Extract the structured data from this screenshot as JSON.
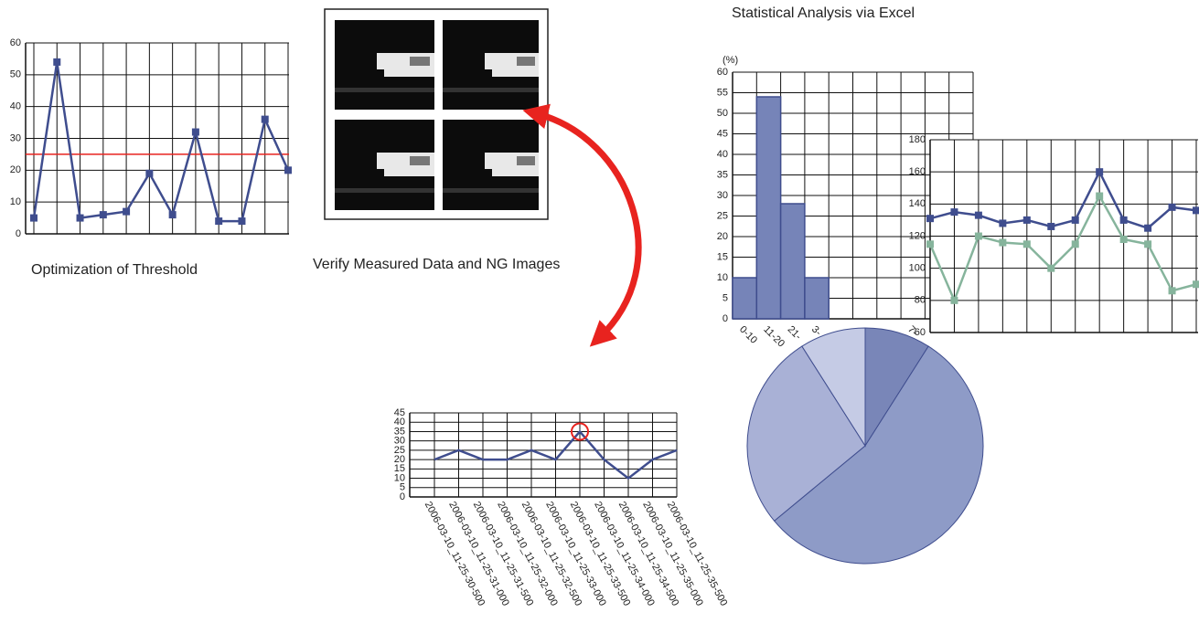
{
  "chart_data": [
    {
      "type": "line",
      "title": "Optimization of Threshold",
      "categories": [
        null,
        null,
        null,
        null,
        null,
        null,
        null,
        null,
        null,
        null,
        null,
        null
      ],
      "values": [
        5,
        54,
        5,
        6,
        7,
        19,
        6,
        32,
        4,
        4,
        36,
        20
      ],
      "color": "#3f4d8e",
      "markers": true,
      "threshold": 25,
      "threshold_color": "#e8231f",
      "ylim": [
        0,
        60
      ],
      "yticks": [
        0,
        10,
        20,
        30,
        40,
        50,
        60
      ],
      "grid": true
    },
    {
      "type": "line",
      "title": "Verify Measured Data and NG Images",
      "categories": [
        "2006-03-10_11-25-30-500",
        "2006-03-10_11-25-31-000",
        "2006-03-10_11-25-31-500",
        "2006-03-10_11-25-32-000",
        "2006-03-10_11-25-32-500",
        "2006-03-10_11-25-33-000",
        "2006-03-10_11-25-33-500",
        "2006-03-10_11-25-34-000",
        "2006-03-10_11-25-34-500",
        "2006-03-10_11-25-35-000",
        "2006-03-10_11-25-35-500"
      ],
      "values": [
        20,
        25,
        20,
        20,
        25,
        20,
        35,
        20,
        10,
        20,
        25
      ],
      "color": "#3f4d8e",
      "markers": false,
      "highlight": 6,
      "highlight_color": "#e8231f",
      "ylim": [
        0,
        45
      ],
      "yticks": [
        0,
        5,
        10,
        15,
        20,
        25,
        30,
        35,
        40,
        45
      ],
      "grid": true
    },
    {
      "type": "bar",
      "title": "Statistical Analysis via Excel",
      "y_label": "(%)",
      "categories": [
        "0-10",
        "11-20",
        "21-",
        "3-",
        null,
        null,
        null,
        "7-",
        null,
        null
      ],
      "values": [
        10,
        54,
        28,
        10,
        null,
        null,
        null,
        null,
        null,
        null
      ],
      "color": "#7684b8",
      "ylim": [
        0,
        60
      ],
      "yticks": [
        0,
        5,
        10,
        15,
        20,
        25,
        30,
        35,
        40,
        45,
        50,
        55,
        60
      ],
      "grid": true
    },
    {
      "type": "line",
      "categories": [
        null,
        null,
        null,
        null,
        null,
        null,
        null,
        null,
        null,
        null,
        null,
        null
      ],
      "series": [
        {
          "color": "#3f4d8e",
          "values": [
            131,
            135,
            133,
            128,
            130,
            126,
            130,
            160,
            130,
            125,
            138,
            136
          ]
        },
        {
          "color": "#86b49c",
          "values": [
            115,
            80,
            120,
            116,
            115,
            100,
            115,
            145,
            118,
            115,
            86,
            90
          ]
        }
      ],
      "markers": true,
      "ylim": [
        60,
        180
      ],
      "yticks": [
        60,
        80,
        100,
        120,
        140,
        160,
        180
      ],
      "grid": true
    },
    {
      "type": "pie",
      "values": [
        9,
        55,
        27,
        9
      ],
      "colors": [
        "#7986b8",
        "#8e9bc7",
        "#a9b1d6",
        "#c5cbe5"
      ]
    }
  ]
}
